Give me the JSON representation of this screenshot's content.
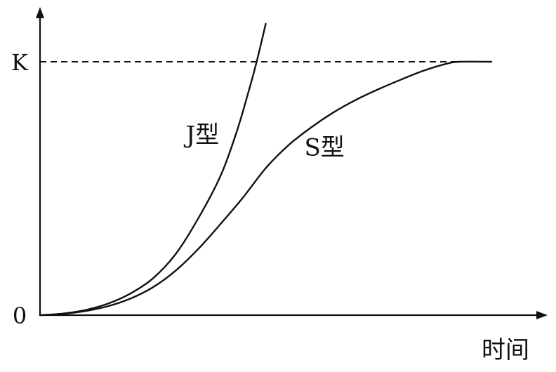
{
  "chart_data": {
    "type": "line",
    "title": "",
    "xlabel": "时间",
    "ylabel": "",
    "xlim": [
      0,
      100
    ],
    "ylim": [
      0,
      100
    ],
    "y_ticks": [
      {
        "label": "0",
        "value": 0
      },
      {
        "label": "K",
        "value": 100
      }
    ],
    "reference_line": {
      "label": "K",
      "value": 100,
      "style": "dashed"
    },
    "grid": false,
    "series": [
      {
        "name": "J型",
        "label_at": [
          36,
          68
        ],
        "points": [
          [
            0,
            0
          ],
          [
            5,
            0.6
          ],
          [
            10,
            2
          ],
          [
            15,
            4.5
          ],
          [
            20,
            8.5
          ],
          [
            25,
            14.5
          ],
          [
            30,
            24
          ],
          [
            35,
            38
          ],
          [
            40,
            55
          ],
          [
            43.5,
            72
          ],
          [
            46,
            87
          ],
          [
            48,
            100
          ],
          [
            50,
            115
          ]
        ]
      },
      {
        "name": "S型",
        "label_at": [
          63,
          63
        ],
        "points": [
          [
            0,
            0
          ],
          [
            5,
            0.5
          ],
          [
            10,
            1.6
          ],
          [
            15,
            3.5
          ],
          [
            20,
            6.5
          ],
          [
            25,
            11
          ],
          [
            30,
            17.5
          ],
          [
            35,
            26
          ],
          [
            40,
            36
          ],
          [
            45,
            46.5
          ],
          [
            50,
            58
          ],
          [
            55,
            67
          ],
          [
            60,
            74
          ],
          [
            65,
            80
          ],
          [
            70,
            85
          ],
          [
            75,
            89.2
          ],
          [
            80,
            93
          ],
          [
            85,
            96.5
          ],
          [
            90,
            99.2
          ],
          [
            93,
            100
          ],
          [
            100,
            100
          ]
        ]
      }
    ]
  }
}
